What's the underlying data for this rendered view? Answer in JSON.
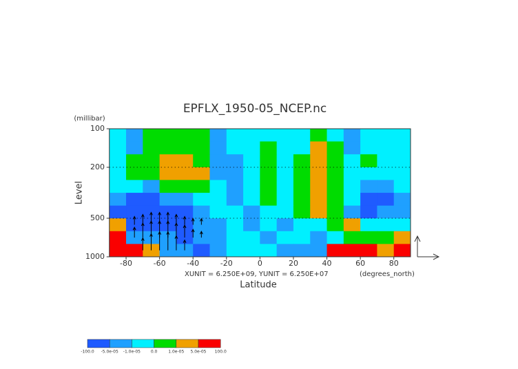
{
  "chart_data": {
    "type": "contour",
    "title": "EPFLX_1950-05_NCEP.nc",
    "y_unit": "(millibar)",
    "y_label": "Level",
    "x_label": "Latitude",
    "x_unit": "(degrees_north)",
    "annotation": "XUNIT = 6.250E+09, YUNIT = 6.250E+07",
    "xlim": [
      -90,
      90
    ],
    "xticks": [
      -80,
      -60,
      -40,
      -20,
      0,
      20,
      40,
      60,
      80
    ],
    "ylim": [
      1000,
      100
    ],
    "yticks": [
      100,
      200,
      500,
      1000
    ],
    "log_y": true,
    "grid": true,
    "x": [
      -85,
      -75,
      -65,
      -55,
      -45,
      -35,
      -25,
      -15,
      -5,
      5,
      15,
      25,
      35,
      45,
      55,
      65,
      75,
      85
    ],
    "levels": [
      112,
      141,
      178,
      224,
      282,
      355,
      447,
      562,
      708,
      891
    ],
    "values": [
      [
        -5e-06,
        -3e-05,
        5e-06,
        5e-06,
        5e-06,
        5e-06,
        -3e-05,
        -5e-06,
        -5e-06,
        -5e-06,
        -5e-06,
        -5e-06,
        5e-06,
        -5e-06,
        -3e-05,
        -5e-06,
        -5e-06,
        -5e-06
      ],
      [
        -5e-06,
        -3e-05,
        5e-06,
        5e-06,
        5e-06,
        5e-06,
        -3e-05,
        -5e-06,
        -5e-06,
        5e-06,
        -5e-06,
        -5e-06,
        3e-05,
        5e-06,
        -3e-05,
        -5e-06,
        -5e-06,
        -5e-06
      ],
      [
        -5e-06,
        5e-06,
        5e-06,
        3e-05,
        3e-05,
        5e-06,
        -3e-05,
        -3e-05,
        -5e-06,
        5e-06,
        -5e-06,
        5e-06,
        3e-05,
        5e-06,
        -5e-06,
        5e-06,
        -5e-06,
        -5e-06
      ],
      [
        -5e-06,
        5e-06,
        5e-06,
        3e-05,
        3e-05,
        3e-05,
        -3e-05,
        -3e-05,
        -5e-06,
        5e-06,
        -5e-06,
        5e-06,
        3e-05,
        5e-06,
        -5e-06,
        -5e-06,
        -5e-06,
        -5e-06
      ],
      [
        -5e-06,
        -5e-06,
        -3e-05,
        5e-06,
        5e-06,
        5e-06,
        -5e-06,
        -3e-05,
        -5e-06,
        5e-06,
        -5e-06,
        5e-06,
        3e-05,
        5e-06,
        -5e-06,
        -3e-05,
        -3e-05,
        -5e-06
      ],
      [
        -3e-05,
        -8e-05,
        -8e-05,
        -3e-05,
        -3e-05,
        -5e-06,
        -5e-06,
        -3e-05,
        -5e-06,
        5e-06,
        -5e-06,
        5e-06,
        3e-05,
        5e-06,
        -5e-06,
        -8e-05,
        -8e-05,
        -3e-05
      ],
      [
        -8e-05,
        -8e-05,
        -8e-05,
        -8e-05,
        -8e-05,
        -3e-05,
        -5e-06,
        -5e-06,
        -3e-05,
        -5e-06,
        -5e-06,
        5e-06,
        3e-05,
        5e-06,
        -3e-05,
        -8e-05,
        -3e-05,
        -3e-05
      ],
      [
        3e-05,
        -8e-05,
        -8e-05,
        -8e-05,
        -8e-05,
        -3e-05,
        -3e-05,
        -5e-06,
        -3e-05,
        -5e-06,
        -3e-05,
        -5e-06,
        -5e-06,
        5e-06,
        3e-05,
        -5e-06,
        -5e-06,
        -5e-06
      ],
      [
        8e-05,
        -3e-05,
        -3e-05,
        -3e-05,
        -8e-05,
        -3e-05,
        -3e-05,
        -5e-06,
        -5e-06,
        -3e-05,
        -5e-06,
        -5e-06,
        -3e-05,
        -5e-06,
        5e-06,
        5e-06,
        5e-06,
        3e-05
      ],
      [
        8e-05,
        8e-05,
        3e-05,
        -3e-05,
        -3e-05,
        -8e-05,
        -3e-05,
        -5e-06,
        -5e-06,
        -5e-06,
        -3e-05,
        -3e-05,
        -3e-05,
        8e-05,
        8e-05,
        8e-05,
        3e-05,
        8e-05
      ]
    ],
    "colorbar": {
      "ticks": [
        {
          "value": -100,
          "label": "-100.0"
        },
        {
          "value": -5e-05,
          "label": "-5.0e-05"
        },
        {
          "value": -1e-05,
          "label": "-1.0e-05"
        },
        {
          "value": 0,
          "label": "0.0"
        },
        {
          "value": 1e-05,
          "label": "1.0e-05"
        },
        {
          "value": 5e-05,
          "label": "5.0e-05"
        },
        {
          "value": 100,
          "label": "100.0"
        }
      ],
      "colors": [
        "#1f5bff",
        "#1fa0ff",
        "#00f0ff",
        "#00dc00",
        "#f0a000",
        "#fa0000"
      ]
    },
    "vectors": {
      "x": [
        -75,
        -70,
        -65,
        -60,
        -55,
        -50,
        -45,
        -40,
        -35,
        -75,
        -70,
        -65,
        -60,
        -55,
        -50,
        -45,
        -40,
        -35,
        -70,
        -65,
        -60,
        -55,
        -50,
        -45
      ],
      "level": [
        562,
        562,
        562,
        562,
        562,
        562,
        562,
        562,
        562,
        708,
        708,
        708,
        708,
        708,
        708,
        708,
        708,
        708,
        891,
        891,
        891,
        891,
        891,
        891
      ],
      "dy": [
        0.4,
        0.5,
        0.6,
        0.6,
        0.6,
        0.5,
        0.4,
        0.3,
        0.3,
        0.5,
        0.7,
        0.8,
        0.8,
        0.8,
        0.7,
        0.6,
        0.4,
        0.3,
        0.6,
        0.8,
        0.9,
        0.9,
        0.7,
        0.5
      ]
    }
  }
}
